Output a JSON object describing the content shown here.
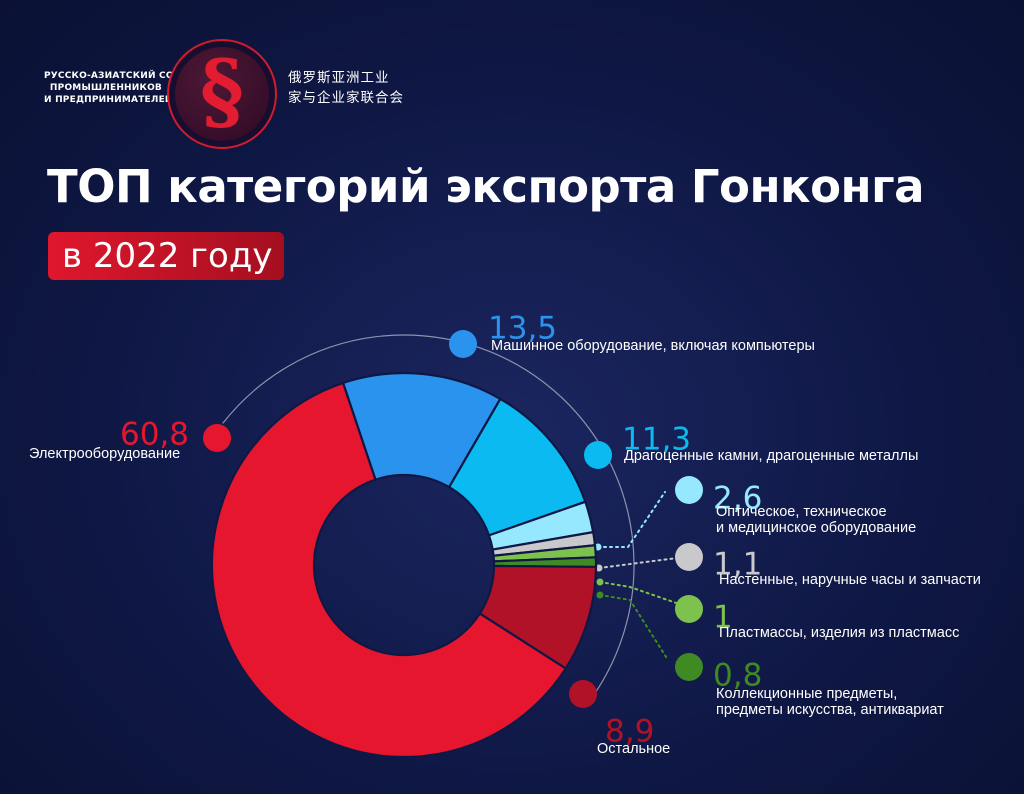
{
  "header": {
    "org_line1": "РУССКО-АЗИАТСКИЙ СОЮЗ",
    "org_line2": "ПРОМЫШЛЕННИКОВ",
    "org_line3": "И ПРЕДПРИНИМАТЕЛЕЙ",
    "cn_line1": "俄罗斯亚洲工业",
    "cn_line2": "家与企业家联合会",
    "logo_icon": "section-sign-icon"
  },
  "title": "ТОП категорий экспорта Гонконга",
  "subtitle": "в 2022 году",
  "chart_data": {
    "type": "pie",
    "variant": "donut",
    "title": "ТОП категорий экспорта Гонконга",
    "subtitle": "в 2022 году",
    "slices": [
      {
        "label": "Машинное оборудование, включая компьютеры",
        "value": 13.5,
        "display": "13,5",
        "color": "#2a93ee"
      },
      {
        "label": "Драгоценные камни, драгоценные металлы",
        "value": 11.3,
        "display": "11,3",
        "color": "#0bbaf0"
      },
      {
        "label": "Оптическое, техническое и медицинское оборудование",
        "value": 2.6,
        "display": "2,6",
        "color": "#96e8ff"
      },
      {
        "label": "Настенные, наручные часы и запчасти",
        "value": 1.1,
        "display": "1,1",
        "color": "#c9c9cc"
      },
      {
        "label": "Пластмассы, изделия из пластмасс",
        "value": 1,
        "display": "1",
        "color": "#7ec24e"
      },
      {
        "label": "Коллекционные предметы, предметы искусства, антиквариат",
        "value": 0.8,
        "display": "0,8",
        "color": "#3f8a22"
      },
      {
        "label": "Остальное",
        "value": 8.9,
        "display": "8,9",
        "color": "#b21227"
      },
      {
        "label": "Электрооборудование",
        "value": 60.8,
        "display": "60,8",
        "color": "#e5162d"
      }
    ]
  }
}
